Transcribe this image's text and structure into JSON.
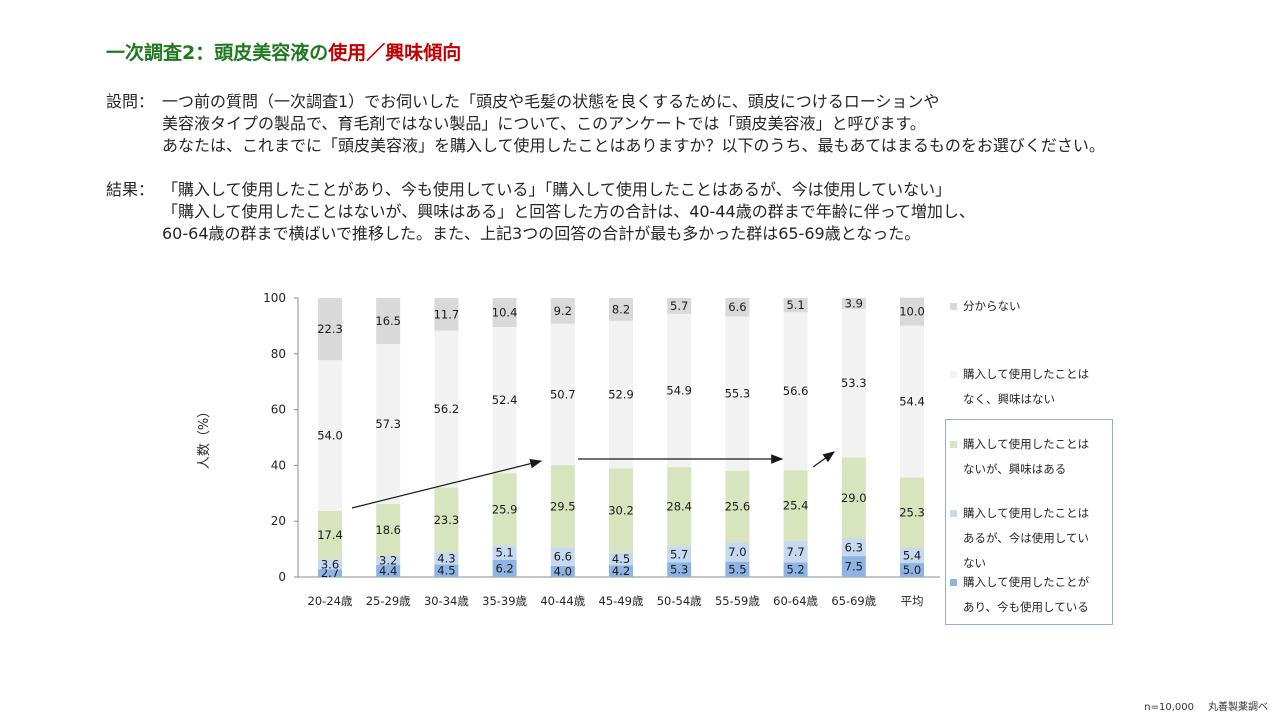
{
  "title": {
    "part1": "一次調査2：頭皮美容液の",
    "part2": "使用／興味傾向"
  },
  "question": {
    "label": "設問：",
    "lines": [
      "一つ前の質問（一次調査1）でお伺いした「頭皮や毛髪の状態を良くするために、頭皮につけるローションや",
      "美容液タイプの製品で、育毛剤ではない製品」について、このアンケートでは「頭皮美容液」と呼びます。",
      "あなたは、これまでに「頭皮美容液」を購入して使用したことはありますか？以下のうち、最もあてはまるものをお選びください。"
    ]
  },
  "result": {
    "label": "結果：",
    "lines": [
      "「購入して使用したことがあり、今も使用している」「購入して使用したことはあるが、今は使用していない」",
      "「購入して使用したことはないが、興味はある」と回答した方の合計は、40-44歳の群まで年齢に伴って増加し、",
      "60-64歳の群まで横ばいで推移した。また、上記3つの回答の合計が最も多かった群は65-69歳となった。"
    ]
  },
  "footer": {
    "n": "n=10,000",
    "source": "丸善製薬調べ"
  },
  "chart_data": {
    "type": "bar",
    "stacked": true,
    "ylabel": "人数（%）",
    "ylim": [
      0,
      100
    ],
    "yticks": [
      0,
      20,
      40,
      60,
      80,
      100
    ],
    "grid": false,
    "legend_position": "right",
    "categories": [
      "20-24歳",
      "25-29歳",
      "30-34歳",
      "35-39歳",
      "40-44歳",
      "45-49歳",
      "50-54歳",
      "55-59歳",
      "60-64歳",
      "65-69歳",
      "平均"
    ],
    "series": [
      {
        "name": "購入して使用したことがあり、今も使用している",
        "color": "#8eb4e3",
        "values": [
          2.7,
          4.4,
          4.5,
          6.2,
          4.0,
          4.2,
          5.3,
          5.5,
          5.2,
          7.5,
          5.0
        ]
      },
      {
        "name": "購入して使用したことはあるが、今は使用していない",
        "color": "#c6d9f1",
        "values": [
          3.6,
          3.2,
          4.3,
          5.1,
          6.6,
          4.5,
          5.7,
          7.0,
          7.7,
          6.3,
          5.4
        ]
      },
      {
        "name": "購入して使用したことはないが、興味はある",
        "color": "#d7e4bd",
        "values": [
          17.4,
          18.6,
          23.3,
          25.9,
          29.5,
          30.2,
          28.4,
          25.6,
          25.4,
          29.0,
          25.3
        ]
      },
      {
        "name": "購入して使用したことはなく、興味はない",
        "color": "#f2f2f2",
        "values": [
          54.0,
          57.3,
          56.2,
          52.4,
          50.7,
          52.9,
          54.9,
          55.3,
          56.6,
          53.3,
          54.4
        ]
      },
      {
        "name": "分からない",
        "color": "#d9d9d9",
        "values": [
          22.3,
          16.5,
          11.7,
          10.4,
          9.2,
          8.2,
          5.7,
          6.6,
          5.1,
          3.9,
          10.0
        ]
      }
    ],
    "legend_labels": [
      [
        "分からない"
      ],
      [
        "購入して使用したことは",
        "なく、興味はない"
      ],
      [
        "購入して使用したことは",
        "ないが、興味はある"
      ],
      [
        "購入して使用したことは",
        "あるが、今は使用してい",
        "ない"
      ],
      [
        "購入して使用したことが",
        "あり、今も使用している"
      ]
    ]
  }
}
